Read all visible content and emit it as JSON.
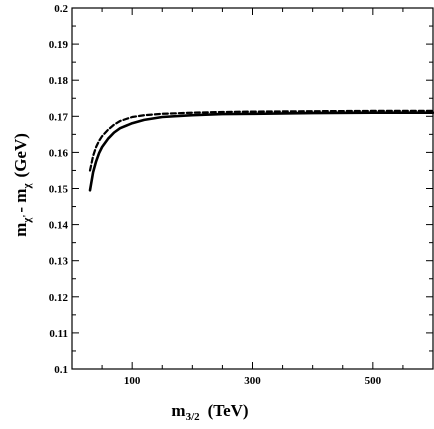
{
  "chart_data": {
    "type": "line",
    "title": "",
    "xlabel": {
      "base": "m",
      "sub": "3/2",
      "unit": "(TeV)"
    },
    "ylabel": {
      "part1": "m",
      "sub1": "χ'",
      "part2": "- m",
      "sub2": "χ",
      "unit": "(GeV)"
    },
    "xlim": [
      0,
      600
    ],
    "ylim": [
      0.1,
      0.2
    ],
    "xticks": [
      100,
      300,
      500
    ],
    "xtick_labels": [
      "100",
      "300",
      "500"
    ],
    "yticks": [
      0.1,
      0.11,
      0.12,
      0.13,
      0.14,
      0.15,
      0.16,
      0.17,
      0.18,
      0.19,
      0.2
    ],
    "ytick_labels": [
      "0.1",
      "0.11",
      "0.12",
      "0.13",
      "0.14",
      "0.15",
      "0.16",
      "0.17",
      "0.18",
      "0.19",
      "0.2"
    ],
    "grid": false,
    "legend": "none",
    "series": [
      {
        "style": "solid",
        "x": [
          30,
          35,
          40,
          45,
          50,
          60,
          70,
          80,
          100,
          120,
          150,
          200,
          250,
          300,
          400,
          500,
          600
        ],
        "y": [
          0.1495,
          0.1545,
          0.1575,
          0.1598,
          0.1615,
          0.1638,
          0.1655,
          0.1667,
          0.1681,
          0.169,
          0.1698,
          0.1703,
          0.1706,
          0.1707,
          0.1709,
          0.171,
          0.171
        ]
      },
      {
        "style": "dashed",
        "x": [
          30,
          35,
          40,
          45,
          50,
          60,
          70,
          80,
          100,
          120,
          150,
          200,
          250,
          300,
          400,
          500,
          600
        ],
        "y": [
          0.155,
          0.159,
          0.1615,
          0.1632,
          0.1645,
          0.1663,
          0.1677,
          0.1687,
          0.1698,
          0.1703,
          0.1707,
          0.171,
          0.1712,
          0.1713,
          0.1714,
          0.1715,
          0.1715
        ]
      }
    ]
  }
}
